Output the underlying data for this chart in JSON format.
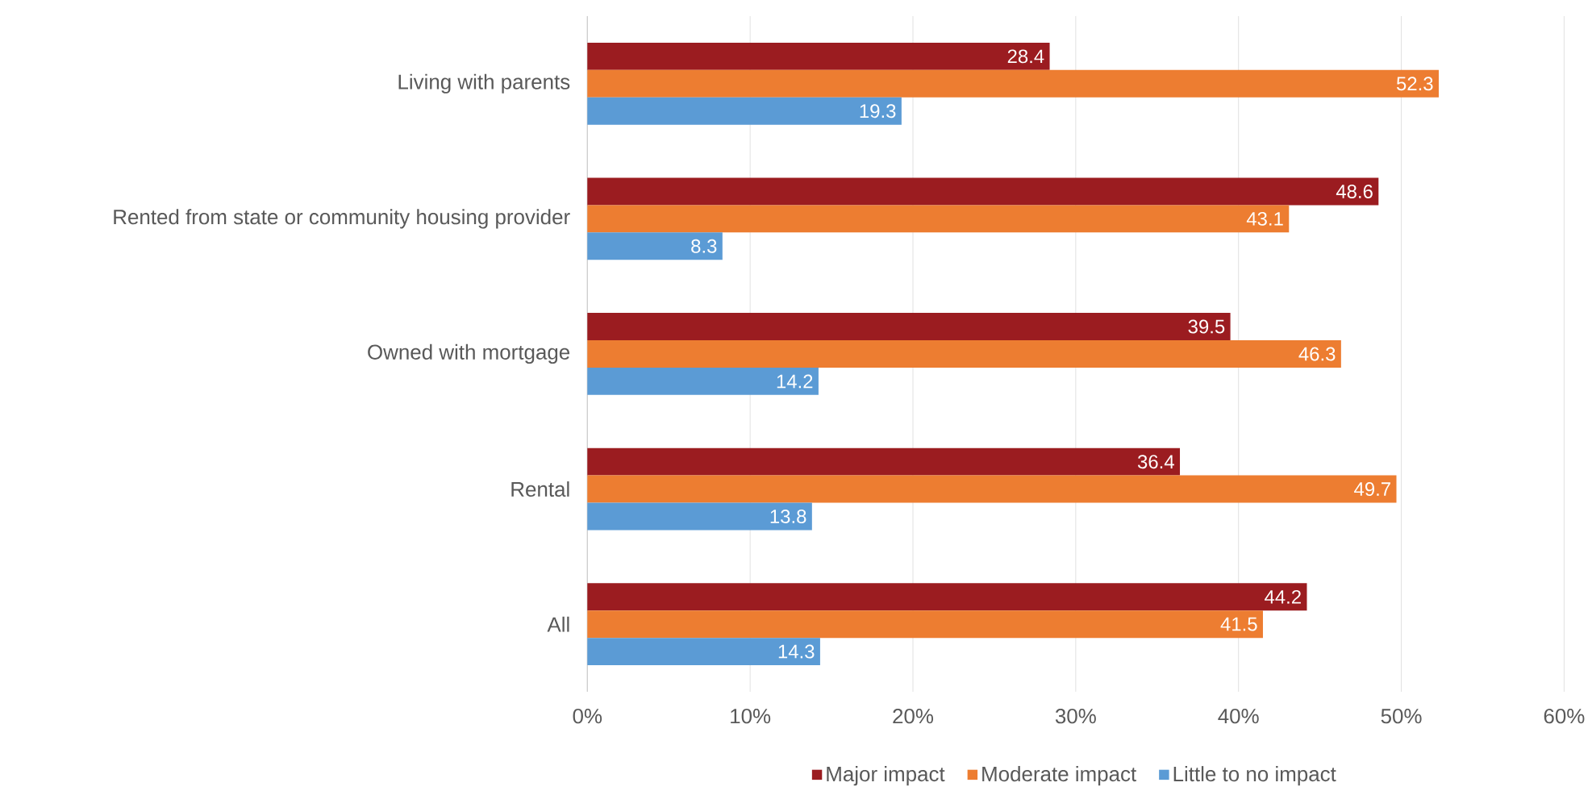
{
  "chart_data": {
    "type": "bar",
    "orientation": "horizontal",
    "categories": [
      "Living with parents",
      "Rented from state or community housing provider",
      "Owned with mortgage",
      "Rental",
      "All"
    ],
    "series": [
      {
        "name": "Major impact",
        "color": "#9b1c20",
        "values": [
          28.4,
          48.6,
          39.5,
          36.4,
          44.2
        ]
      },
      {
        "name": "Moderate impact",
        "color": "#ed7d31",
        "values": [
          52.3,
          43.1,
          46.3,
          49.7,
          41.5
        ]
      },
      {
        "name": "Little to no impact",
        "color": "#5b9bd5",
        "values": [
          19.3,
          8.3,
          14.2,
          13.8,
          14.3
        ]
      }
    ],
    "xlim": [
      0,
      60
    ],
    "xticks": [
      {
        "value": 0,
        "label": "0%"
      },
      {
        "value": 10,
        "label": "10%"
      },
      {
        "value": 20,
        "label": "20%"
      },
      {
        "value": 30,
        "label": "30%"
      },
      {
        "value": 40,
        "label": "40%"
      },
      {
        "value": 50,
        "label": "50%"
      },
      {
        "value": 60,
        "label": "60%"
      }
    ],
    "grid": "x",
    "legend": "bottom",
    "data_labels": true
  }
}
